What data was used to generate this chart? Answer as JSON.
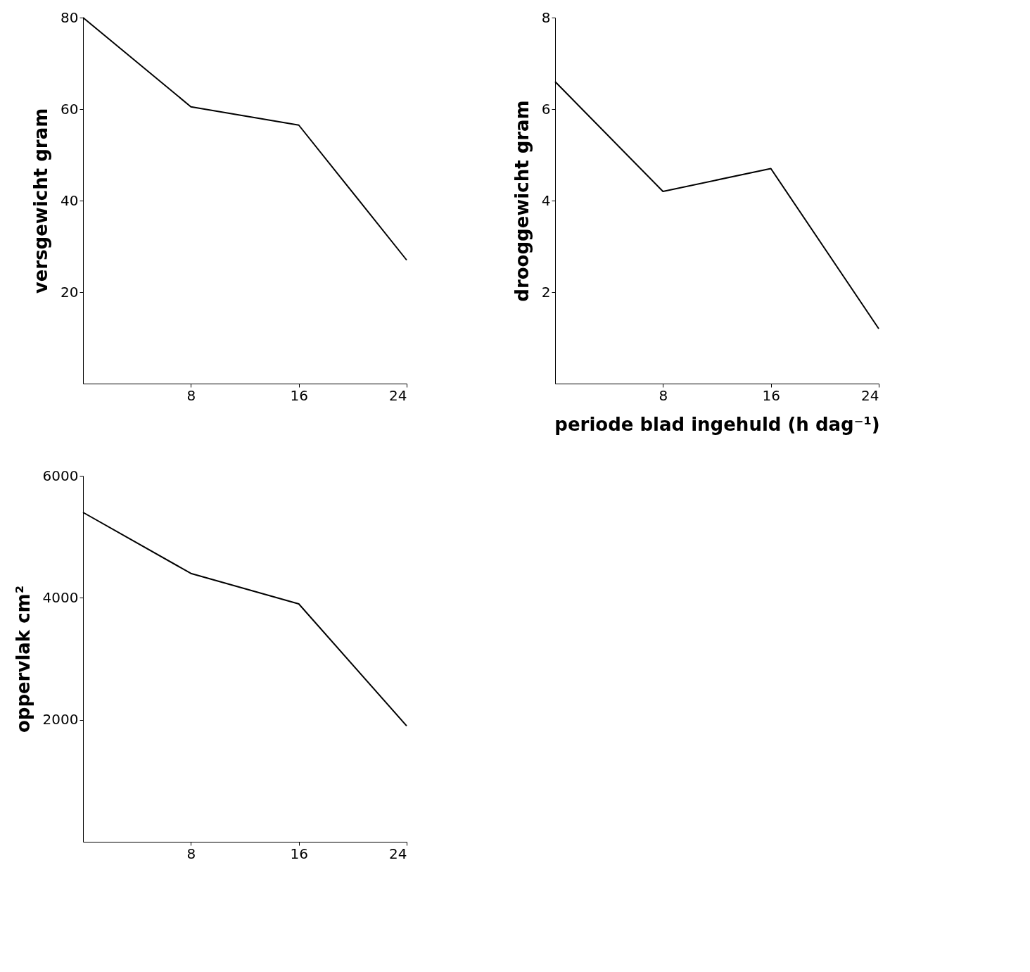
{
  "chart_data": [
    {
      "type": "line",
      "ylabel": "versgewicht gram",
      "x": [
        0,
        8,
        16,
        24
      ],
      "xlim": [
        0,
        24
      ],
      "xticks": [
        8,
        16,
        24
      ],
      "ylim": [
        0,
        80
      ],
      "yticks": [
        20,
        40,
        60,
        80
      ],
      "grid": false,
      "marker": "none",
      "line_style": "solid",
      "series": [
        {
          "color": "#000000",
          "values": [
            80,
            60.5,
            56.5,
            27
          ]
        }
      ]
    },
    {
      "type": "line",
      "ylabel": "drooggewicht gram",
      "xlabel": "periode blad ingehuld (h dag⁻¹)",
      "x": [
        0,
        8,
        16,
        24
      ],
      "xlim": [
        0,
        24
      ],
      "xticks": [
        8,
        16,
        24
      ],
      "ylim": [
        0,
        8
      ],
      "yticks": [
        2,
        4,
        6,
        8
      ],
      "grid": false,
      "marker": "none",
      "line_style": "solid",
      "series": [
        {
          "color": "#000000",
          "values": [
            6.6,
            4.2,
            4.7,
            1.2
          ]
        }
      ]
    },
    {
      "type": "line",
      "ylabel": "oppervlak cm²",
      "x": [
        0,
        8,
        16,
        24
      ],
      "xlim": [
        0,
        24
      ],
      "xticks": [
        8,
        16,
        24
      ],
      "ylim": [
        0,
        6000
      ],
      "yticks": [
        2000,
        4000,
        6000
      ],
      "grid": false,
      "marker": "none",
      "line_style": "solid",
      "series": [
        {
          "color": "#000000",
          "values": [
            5400,
            4400,
            3900,
            1900
          ]
        }
      ]
    }
  ]
}
